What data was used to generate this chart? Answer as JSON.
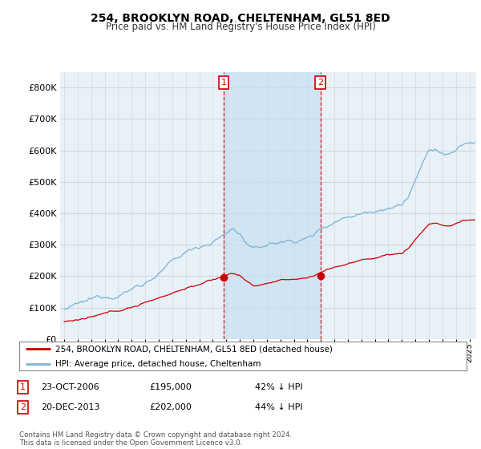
{
  "title": "254, BROOKLYN ROAD, CHELTENHAM, GL51 8ED",
  "subtitle": "Price paid vs. HM Land Registry's House Price Index (HPI)",
  "xlim_start": 1994.7,
  "xlim_end": 2025.5,
  "ylim": [
    0,
    850000
  ],
  "yticks": [
    0,
    100000,
    200000,
    300000,
    400000,
    500000,
    600000,
    700000,
    800000
  ],
  "ytick_labels": [
    "£0",
    "£100K",
    "£200K",
    "£300K",
    "£400K",
    "£500K",
    "£600K",
    "£700K",
    "£800K"
  ],
  "hpi_color": "#7ab3d4",
  "price_color": "#cc0000",
  "span_color": "#c8dff0",
  "sale1_date": 2006.81,
  "sale1_price": 195000,
  "sale2_date": 2013.97,
  "sale2_price": 202000,
  "legend_line1": "254, BROOKLYN ROAD, CHELTENHAM, GL51 8ED (detached house)",
  "legend_line2": "HPI: Average price, detached house, Cheltenham",
  "sale1_info": "23-OCT-2006",
  "sale1_amount": "£195,000",
  "sale1_pct": "42% ↓ HPI",
  "sale2_info": "20-DEC-2013",
  "sale2_amount": "£202,000",
  "sale2_pct": "44% ↓ HPI",
  "footer": "Contains HM Land Registry data © Crown copyright and database right 2024.\nThis data is licensed under the Open Government Licence v3.0.",
  "background_color": "#ffffff",
  "plot_bg_color": "#e8f0f8",
  "grid_color": "#d0d8e0"
}
